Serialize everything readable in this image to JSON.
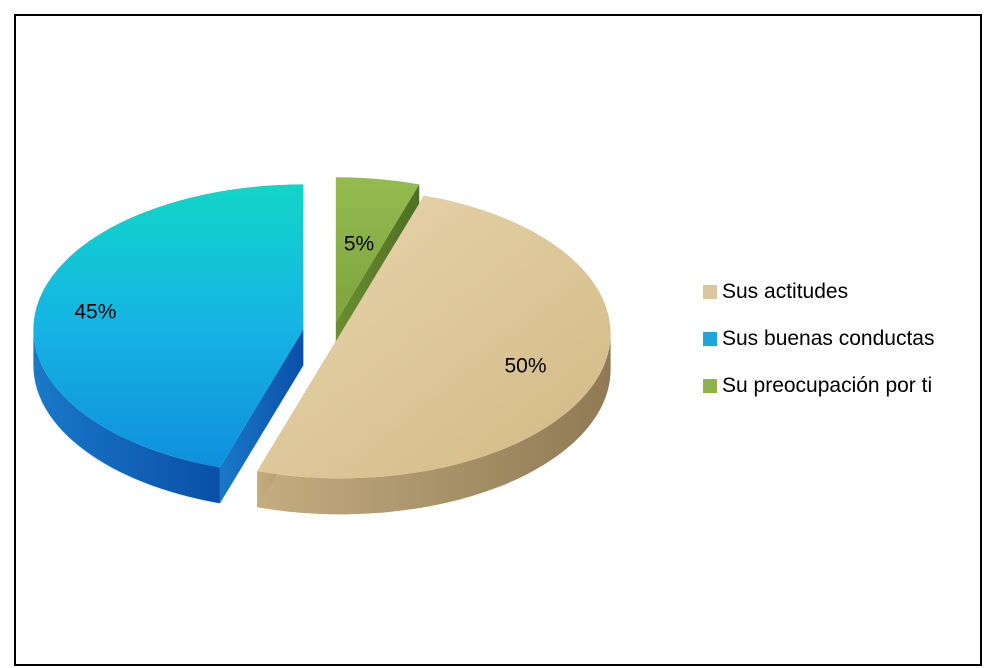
{
  "chart_data": {
    "type": "pie",
    "title": "",
    "labels": [
      "Sus actitudes",
      "Sus buenas conductas",
      "Su preocupación por ti"
    ],
    "values": [
      50,
      45,
      5
    ],
    "data_labels": [
      "50%",
      "45%",
      "5%"
    ],
    "colors": [
      "#dcc59a",
      "#1eaee0",
      "#8db34a"
    ],
    "side_colors": [
      "#a89370",
      "#1264b5",
      "#5f8230"
    ],
    "legend_position": "right",
    "exploded": true,
    "three_d": true
  },
  "legend": {
    "items": [
      {
        "label": "Sus actitudes",
        "color": "#dcc59a"
      },
      {
        "label": "Sus buenas conductas",
        "color": "#1ea6dd"
      },
      {
        "label": "Su preocupación por ti",
        "color": "#8db34a"
      }
    ]
  }
}
